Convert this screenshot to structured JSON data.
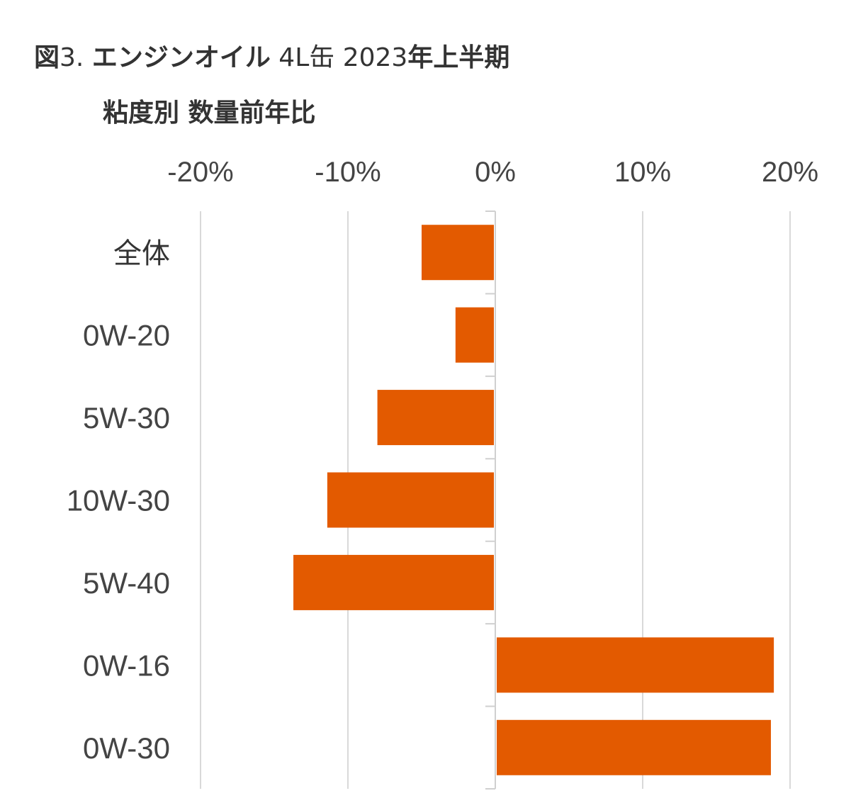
{
  "title": {
    "line1": {
      "prefix": "図",
      "figure_no": "3.",
      "product": "エンジンオイル",
      "can": "4L缶",
      "year": "2023",
      "period": "年上半期"
    },
    "line2": "粘度別 数量前年比"
  },
  "colors": {
    "bar": "#e35a00",
    "grid": "#d9d9d9",
    "axis": "#d0d0d0",
    "text": "#444444"
  },
  "chart_data": {
    "type": "bar",
    "orientation": "horizontal",
    "categories": [
      "全体",
      "0W-20",
      "5W-30",
      "10W-30",
      "5W-40",
      "0W-16",
      "0W-30"
    ],
    "values": [
      -5.0,
      -2.7,
      -8.0,
      -11.4,
      -13.7,
      18.9,
      18.7
    ],
    "x_unit": "%",
    "xlim": [
      -20,
      20
    ],
    "xticks": [
      -20,
      -10,
      0,
      10,
      20
    ],
    "xtick_labels": [
      "-20%",
      "-10%",
      "0%",
      "10%",
      "20%"
    ],
    "xaxis_position": "top",
    "grid": true,
    "legend": "none"
  }
}
